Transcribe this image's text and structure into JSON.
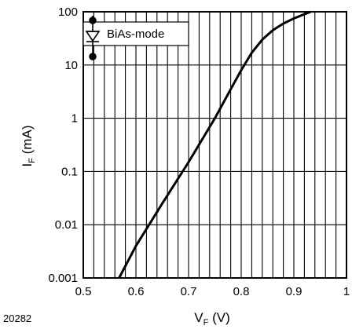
{
  "chart_data": {
    "type": "line",
    "xlabel_main": "V",
    "xlabel_sub": "F",
    "xlabel_unit": " (V)",
    "ylabel_main": "I",
    "ylabel_sub": "F",
    "ylabel_unit": " (mA)",
    "xlim": [
      0.5,
      1.0
    ],
    "ylim": [
      0.001,
      100
    ],
    "yscale": "log",
    "grid": true,
    "x_ticks": [
      {
        "value": 0.5,
        "label": "0.5"
      },
      {
        "value": 0.6,
        "label": "0.6"
      },
      {
        "value": 0.7,
        "label": "0.7"
      },
      {
        "value": 0.8,
        "label": "0.8"
      },
      {
        "value": 0.9,
        "label": "0.9"
      },
      {
        "value": 1.0,
        "label": "1"
      }
    ],
    "y_ticks": [
      {
        "value": 0.001,
        "label": "0.001"
      },
      {
        "value": 0.01,
        "label": "0.01"
      },
      {
        "value": 0.1,
        "label": "0.1"
      },
      {
        "value": 1,
        "label": "1"
      },
      {
        "value": 10,
        "label": "10"
      },
      {
        "value": 100,
        "label": "100"
      }
    ],
    "x_minor_step": 0.02,
    "series": [
      {
        "color": "#000000",
        "x": [
          0.568,
          0.6,
          0.65,
          0.7,
          0.75,
          0.78,
          0.8,
          0.82,
          0.84,
          0.86,
          0.88,
          0.9,
          0.92,
          0.932
        ],
        "y": [
          0.001,
          0.004,
          0.025,
          0.15,
          1.0,
          3.5,
          8,
          17,
          30,
          45,
          60,
          75,
          90,
          100
        ]
      }
    ],
    "legend_label": "BiAs-mode",
    "legend_position": "top-left",
    "figure_code": "20282"
  }
}
